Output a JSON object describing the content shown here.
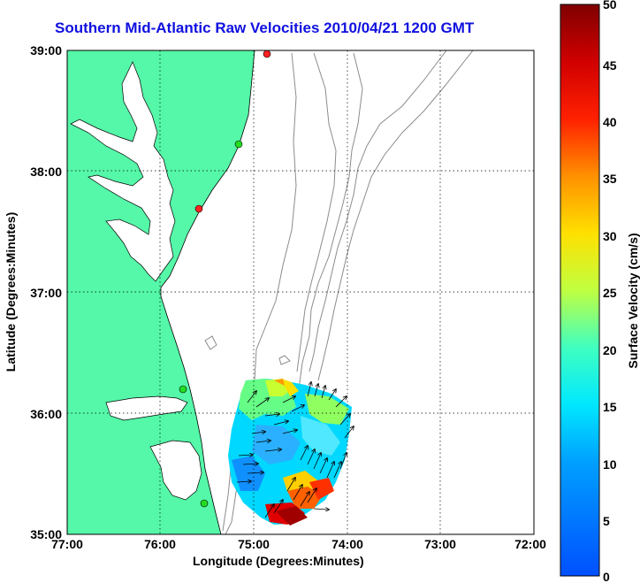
{
  "title": "Southern Mid-Atlantic Raw Velocities 2010/04/21 1200 GMT",
  "axes": {
    "xlabel": "Longitude (Degrees:Minutes)",
    "ylabel": "Latitude (Degrees:Minutes)",
    "x_ticks": [
      "77:00",
      "76:00",
      "75:00",
      "74:00",
      "73:00",
      "72:00"
    ],
    "y_ticks": [
      "39:00",
      "38:00",
      "37:00",
      "36:00",
      "35:00"
    ],
    "xlim": [
      -77,
      -72
    ],
    "ylim": [
      35,
      39
    ],
    "grid": "dotted"
  },
  "colorbar": {
    "label": "Surface Velocity (cm/s)",
    "ticks": [
      "50",
      "45",
      "40",
      "35",
      "30",
      "25",
      "20",
      "15",
      "10",
      "5",
      "0"
    ],
    "range": [
      0,
      50
    ],
    "colormap": "jet"
  },
  "colors": {
    "land": "#55f7a8",
    "title": "#1010e0",
    "bathymetry": "#8c8c8c",
    "station_active": "#22dd22",
    "station_inactive": "#ff2222"
  },
  "stations": [
    {
      "name": "station-1",
      "lon": -74.85,
      "lat": 38.96,
      "status": "inactive"
    },
    {
      "name": "station-2",
      "lon": -75.1,
      "lat": 38.2,
      "status": "active"
    },
    {
      "name": "station-3",
      "lon": -75.5,
      "lat": 37.67,
      "status": "inactive"
    },
    {
      "name": "station-4",
      "lon": -75.8,
      "lat": 36.18,
      "status": "active"
    },
    {
      "name": "station-5",
      "lon": -75.48,
      "lat": 35.25,
      "status": "active"
    }
  ]
}
